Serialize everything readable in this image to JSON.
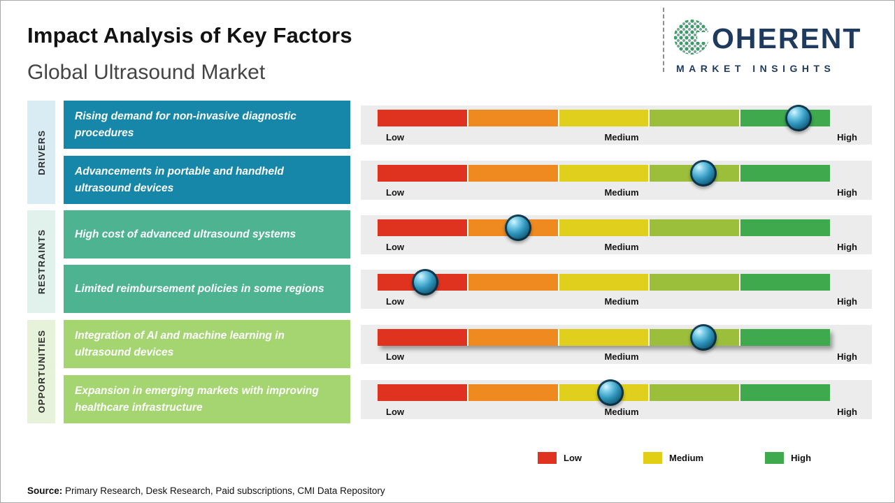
{
  "header": {
    "title": "Impact Analysis of Key Factors",
    "subtitle": "Global Ultrasound Market"
  },
  "logo": {
    "brand_full": "COHERENT",
    "brand_rest": "OHERENT",
    "tagline": "MARKET INSIGHTS",
    "brand_color": "#1e3a5f"
  },
  "categories": [
    {
      "label": "DRIVERS",
      "band_color": "#d9ecf4"
    },
    {
      "label": "RESTRAINTS",
      "band_color": "#e1f1ec"
    },
    {
      "label": "OPPORTUNITIES",
      "band_color": "#e6f3da"
    }
  ],
  "scale": {
    "low": "Low",
    "medium": "Medium",
    "high": "High",
    "segment_colors": [
      "#df3320",
      "#ef8a21",
      "#e0d01d",
      "#9cbf3b",
      "#3fa94d"
    ]
  },
  "rows": [
    {
      "category": "DRIVERS",
      "label": "Rising demand for non-invasive diagnostic procedures",
      "box_color": "#1787a9",
      "impact_percent": 93
    },
    {
      "category": "DRIVERS",
      "label": "Advancements in portable and handheld ultrasound devices",
      "box_color": "#1787a9",
      "impact_percent": 72
    },
    {
      "category": "RESTRAINTS",
      "label": "High cost of advanced ultrasound systems",
      "box_color": "#4db391",
      "impact_percent": 31
    },
    {
      "category": "RESTRAINTS",
      "label": "Limited reimbursement policies in some regions",
      "box_color": "#4db391",
      "impact_percent": 10.5
    },
    {
      "category": "OPPORTUNITIES",
      "label": "Integration of AI and machine learning in ultrasound devices",
      "box_color": "#a4d571",
      "impact_percent": 72
    },
    {
      "category": "OPPORTUNITIES",
      "label": "Expansion in emerging markets with improving healthcare infrastructure",
      "box_color": "#a4d571",
      "impact_percent": 51.5
    }
  ],
  "legend": [
    {
      "label": "Low",
      "color": "#df3320"
    },
    {
      "label": "Medium",
      "color": "#e2cf15"
    },
    {
      "label": "High",
      "color": "#3fa94d"
    }
  ],
  "footer": {
    "source_label": "Source:",
    "source_text": " Primary Research, Desk Research, Paid subscriptions, CMI Data Repository"
  },
  "chart_data": {
    "type": "bar",
    "title": "Impact Analysis of Key Factors",
    "subtitle": "Global Ultrasound Market",
    "scale": [
      "Low",
      "Medium",
      "High"
    ],
    "xlim": [
      0,
      100
    ],
    "groups": [
      {
        "category": "Drivers",
        "factor": "Rising demand for non-invasive diagnostic procedures",
        "impact_position_percent": 93,
        "impact_level": "High"
      },
      {
        "category": "Drivers",
        "factor": "Advancements in portable and handheld ultrasound devices",
        "impact_position_percent": 72,
        "impact_level": "Medium-High"
      },
      {
        "category": "Restraints",
        "factor": "High cost of advanced ultrasound systems",
        "impact_position_percent": 31,
        "impact_level": "Low-Medium"
      },
      {
        "category": "Restraints",
        "factor": "Limited reimbursement policies in some regions",
        "impact_position_percent": 10.5,
        "impact_level": "Low"
      },
      {
        "category": "Opportunities",
        "factor": "Integration of AI and machine learning in ultrasound devices",
        "impact_position_percent": 72,
        "impact_level": "Medium-High"
      },
      {
        "category": "Opportunities",
        "factor": "Expansion in emerging markets with improving healthcare infrastructure",
        "impact_position_percent": 51.5,
        "impact_level": "Medium"
      }
    ],
    "legend": [
      "Low",
      "Medium",
      "High"
    ],
    "legend_position": "bottom-right",
    "grid": false
  }
}
